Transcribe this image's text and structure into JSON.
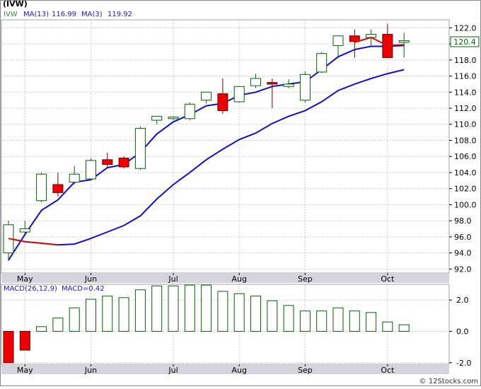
{
  "title": "(IVW)",
  "colors": {
    "up_fill": "#ffffff",
    "up_stroke": "#006400",
    "down_fill": "#ee0000",
    "down_stroke": "#660000",
    "ma13": "#1010cc",
    "ma3": "#cc1111",
    "grid": "#c8c8c8",
    "axis_bg": "#d4d4dc",
    "macd_up": "#006400",
    "macd_down_fill": "#ee0000",
    "label_text": "#1a1acc",
    "ticker_text": "#3a8a3a",
    "price_label_text": "#006400",
    "price_label_border": "#006400"
  },
  "legend": {
    "ticker": "IVW",
    "ma13_label": "MA(13)",
    "ma13_value": "116.99",
    "ma3_label": "MA(3)",
    "ma3_value": "119.92"
  },
  "last_price_label": "120.4",
  "macd_legend": {
    "label": "MACD(26,12,9)",
    "value_label": "MACD=0.42"
  },
  "watermark": "© 12Stocks.com",
  "chart_data": [
    {
      "type": "candlestick",
      "name": "price",
      "x_labels": [
        "May",
        "Jun",
        "Jul",
        "Aug",
        "Sep",
        "Oct"
      ],
      "x_label_index": [
        1,
        5,
        10,
        14,
        18,
        23
      ],
      "y_ticks": [
        92.0,
        94.0,
        96.0,
        98.0,
        100.0,
        102.0,
        104.0,
        106.0,
        108.0,
        110.0,
        112.0,
        114.0,
        116.0,
        118.0,
        120.0,
        122.0
      ],
      "ylim": [
        91.5,
        123.0
      ],
      "grid": true,
      "candles": [
        {
          "o": 94.0,
          "h": 98.0,
          "l": 93.0,
          "c": 97.5
        },
        {
          "o": 96.6,
          "h": 98.0,
          "l": 96.4,
          "c": 97.0
        },
        {
          "o": 100.5,
          "h": 104.0,
          "l": 100.3,
          "c": 103.8
        },
        {
          "o": 102.5,
          "h": 104.0,
          "l": 101.0,
          "c": 101.5
        },
        {
          "o": 102.8,
          "h": 104.8,
          "l": 102.5,
          "c": 103.8
        },
        {
          "o": 103.2,
          "h": 105.8,
          "l": 103.0,
          "c": 105.5
        },
        {
          "o": 105.6,
          "h": 106.5,
          "l": 104.6,
          "c": 105.0
        },
        {
          "o": 105.8,
          "h": 106.0,
          "l": 104.5,
          "c": 104.7
        },
        {
          "o": 104.5,
          "h": 109.7,
          "l": 104.3,
          "c": 109.5
        },
        {
          "o": 110.5,
          "h": 111.0,
          "l": 110.0,
          "c": 111.0
        },
        {
          "o": 110.7,
          "h": 111.0,
          "l": 110.5,
          "c": 110.9
        },
        {
          "o": 110.7,
          "h": 112.7,
          "l": 110.5,
          "c": 112.5
        },
        {
          "o": 113.0,
          "h": 114.0,
          "l": 112.6,
          "c": 114.0
        },
        {
          "o": 113.8,
          "h": 115.7,
          "l": 111.3,
          "c": 111.7
        },
        {
          "o": 112.8,
          "h": 114.7,
          "l": 112.7,
          "c": 114.7
        },
        {
          "o": 114.8,
          "h": 116.3,
          "l": 114.5,
          "c": 115.7
        },
        {
          "o": 115.2,
          "h": 115.7,
          "l": 112.0,
          "c": 115.0
        },
        {
          "o": 114.7,
          "h": 115.6,
          "l": 114.5,
          "c": 115.0
        },
        {
          "o": 113.0,
          "h": 116.6,
          "l": 112.7,
          "c": 116.2
        },
        {
          "o": 116.5,
          "h": 119.0,
          "l": 116.4,
          "c": 118.8
        },
        {
          "o": 119.8,
          "h": 121.0,
          "l": 118.2,
          "c": 121.0
        },
        {
          "o": 121.0,
          "h": 121.8,
          "l": 118.3,
          "c": 120.3
        },
        {
          "o": 120.8,
          "h": 121.8,
          "l": 119.8,
          "c": 121.2
        },
        {
          "o": 121.2,
          "h": 122.5,
          "l": 118.2,
          "c": 118.3
        },
        {
          "o": 120.2,
          "h": 121.4,
          "l": 118.3,
          "c": 120.4
        }
      ],
      "ma13": [
        93.1,
        96.3,
        99.3,
        100.6,
        102.8,
        103.1,
        104.6,
        105.0,
        106.5,
        108.8,
        110.3,
        111.2,
        112.3,
        112.6,
        113.6,
        114.0,
        114.7,
        115.0,
        115.3,
        116.8,
        118.4,
        119.3,
        119.7,
        119.7,
        119.8
      ],
      "ma3": [
        {
          "i": 0,
          "v": 95.8
        },
        {
          "i": 1,
          "v": 95.4
        },
        {
          "i": 2,
          "v": 95.2
        },
        {
          "i": 3,
          "v": 95.0
        },
        {
          "i": 4,
          "v": 95.1
        },
        {
          "i": 5,
          "v": 95.8
        },
        {
          "i": 6,
          "v": 96.6
        },
        {
          "i": 7,
          "v": 97.4
        },
        {
          "i": 8,
          "v": 98.6
        },
        {
          "i": 9,
          "v": 100.7
        },
        {
          "i": 10,
          "v": 102.5
        },
        {
          "i": 11,
          "v": 104.0
        },
        {
          "i": 12,
          "v": 105.6
        },
        {
          "i": 13,
          "v": 106.9
        },
        {
          "i": 14,
          "v": 108.1
        },
        {
          "i": 15,
          "v": 108.9
        },
        {
          "i": 16,
          "v": 110.1
        },
        {
          "i": 17,
          "v": 111.0
        },
        {
          "i": 18,
          "v": 111.7
        },
        {
          "i": 19,
          "v": 112.8
        },
        {
          "i": 20,
          "v": 114.2
        },
        {
          "i": 21,
          "v": 115.0
        },
        {
          "i": 22,
          "v": 115.7
        },
        {
          "i": 23,
          "v": 116.3
        },
        {
          "i": 24,
          "v": 116.8
        }
      ],
      "ma_short_red": [
        {
          "i": 21,
          "v": 120.2
        },
        {
          "i": 22,
          "v": 120.8
        },
        {
          "i": 23,
          "v": 119.8
        },
        {
          "i": 24,
          "v": 119.9
        }
      ]
    },
    {
      "type": "bar",
      "name": "MACD",
      "y_ticks": [
        -2.0,
        0.0,
        2.0
      ],
      "ylim": [
        -2.1,
        3.0
      ],
      "grid": true,
      "x_labels": [
        "May",
        "Jun",
        "Jul",
        "Aug",
        "Sep",
        "Oct"
      ],
      "values": [
        -2.0,
        -1.2,
        0.3,
        0.85,
        1.5,
        2.05,
        2.25,
        2.15,
        2.65,
        2.9,
        2.9,
        2.95,
        2.95,
        2.55,
        2.4,
        2.25,
        1.95,
        1.65,
        1.3,
        1.3,
        1.5,
        1.3,
        1.2,
        0.6,
        0.42
      ]
    }
  ]
}
